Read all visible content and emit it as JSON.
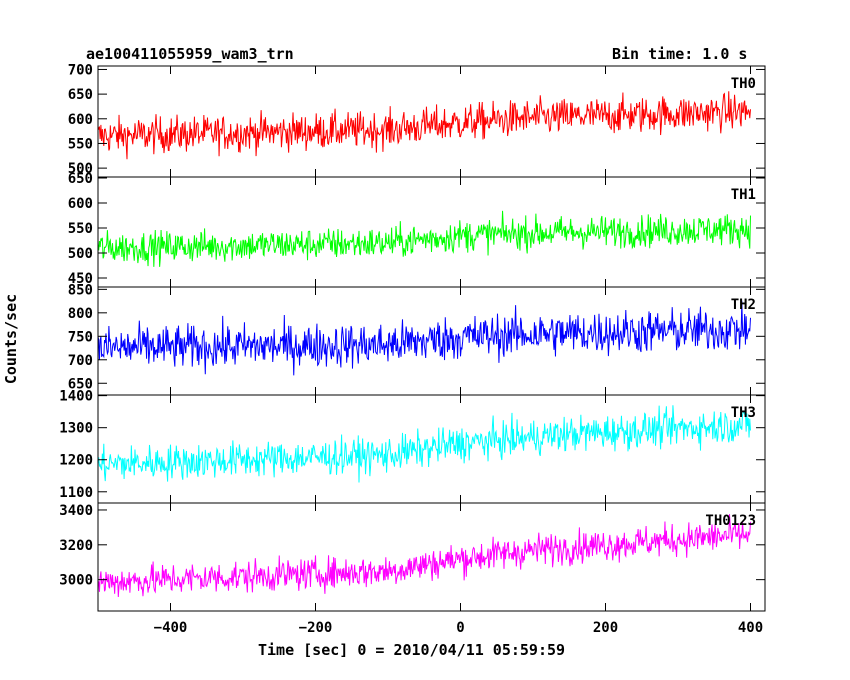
{
  "chart_data": {
    "type": "line",
    "title": "ae100411055959_wam3_trn",
    "subtitle": "Bin time: 1.0 s",
    "xlabel": "Time [sec] 0 = 2010/04/11 05:59:59",
    "ylabel": "Counts/sec",
    "xlim": [
      -500,
      420
    ],
    "x_ticks": [
      "−400",
      "−200",
      "0",
      "200",
      "400"
    ],
    "x_tick_values": [
      -400,
      -200,
      0,
      200,
      400
    ],
    "x_start": -500,
    "x_end": 400,
    "bin": 1.0,
    "grid": false,
    "panels": [
      {
        "name": "TH0",
        "color": "#ff0000",
        "ylim": [
          482,
          707
        ],
        "yticks": [
          500,
          550,
          600,
          650,
          700
        ],
        "ytick_labels": [
          "500",
          "550",
          "600",
          "650",
          "700"
        ],
        "trend": [
          [
            -500,
            565
          ],
          [
            -100,
            578
          ],
          [
            0,
            592
          ],
          [
            100,
            602
          ],
          [
            400,
            615
          ]
        ],
        "noise": 30
      },
      {
        "name": "TH1",
        "color": "#00ff00",
        "ylim": [
          432,
          652
        ],
        "yticks": [
          450,
          500,
          550,
          600,
          650
        ],
        "ytick_labels": [
          "450",
          "500",
          "550",
          "600",
          "650"
        ],
        "trend": [
          [
            -500,
            510
          ],
          [
            -100,
            520
          ],
          [
            0,
            535
          ],
          [
            100,
            540
          ],
          [
            400,
            548
          ]
        ],
        "noise": 26
      },
      {
        "name": "TH2",
        "color": "#0000ff",
        "ylim": [
          625,
          855
        ],
        "yticks": [
          650,
          700,
          750,
          800,
          850
        ],
        "ytick_labels": [
          "650",
          "700",
          "750",
          "800",
          "850"
        ],
        "trend": [
          [
            -500,
            725
          ],
          [
            -100,
            732
          ],
          [
            0,
            748
          ],
          [
            100,
            755
          ],
          [
            400,
            765
          ]
        ],
        "noise": 38
      },
      {
        "name": "TH3",
        "color": "#00ffff",
        "ylim": [
          1065,
          1402
        ],
        "yticks": [
          1100,
          1200,
          1300,
          1400
        ],
        "ytick_labels": [
          "1100",
          "1200",
          "1300",
          "1400"
        ],
        "trend": [
          [
            -500,
            1185
          ],
          [
            -100,
            1215
          ],
          [
            0,
            1250
          ],
          [
            150,
            1280
          ],
          [
            400,
            1310
          ]
        ],
        "noise": 45
      },
      {
        "name": "TH0123",
        "color": "#ff00ff",
        "ylim": [
          2820,
          3440
        ],
        "yticks": [
          3000,
          3200,
          3400
        ],
        "ytick_labels": [
          "3000",
          "3200",
          "3400"
        ],
        "trend": [
          [
            -500,
            2985
          ],
          [
            -100,
            3050
          ],
          [
            0,
            3120
          ],
          [
            100,
            3170
          ],
          [
            400,
            3260
          ]
        ],
        "noise": 75
      }
    ]
  }
}
